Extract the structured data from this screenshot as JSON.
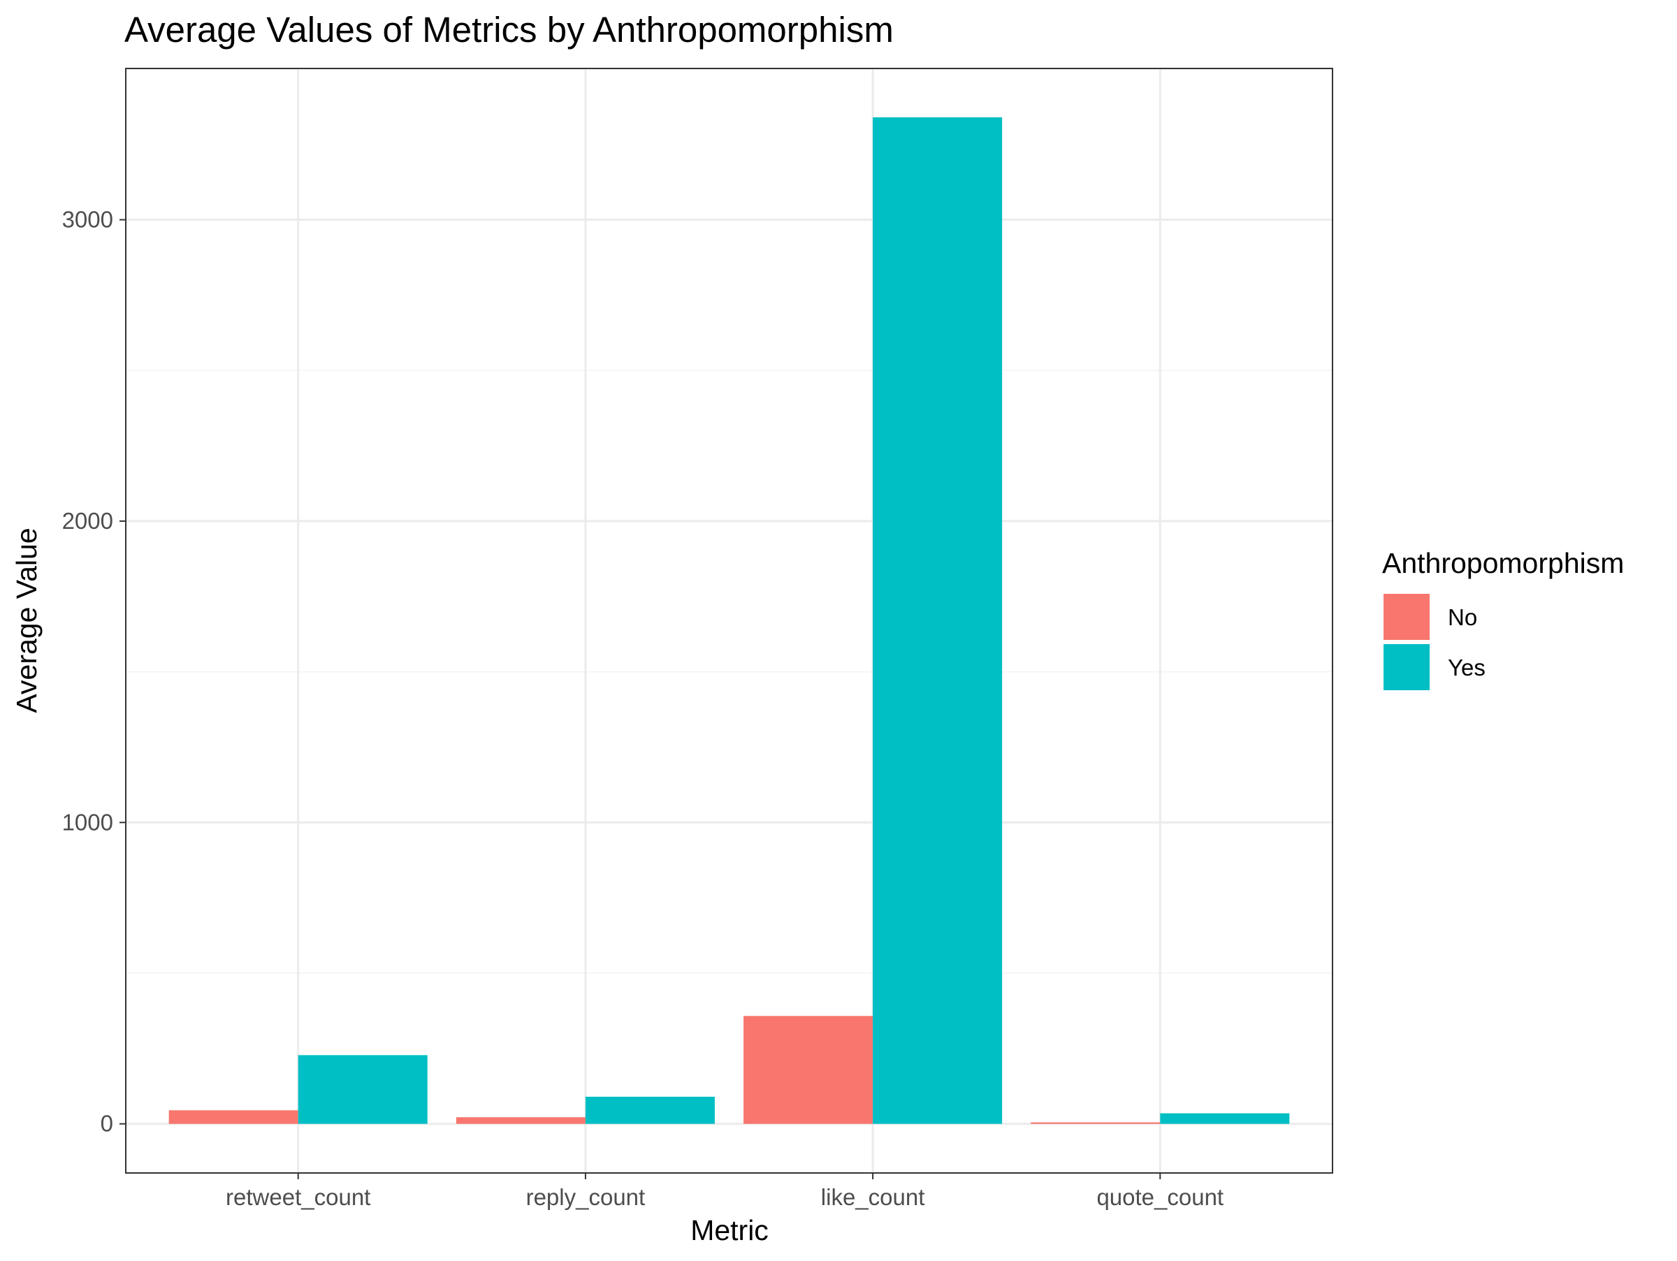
{
  "chart_data": {
    "type": "bar",
    "title": "Average Values of Metrics by Anthropomorphism",
    "xlabel": "Metric",
    "ylabel": "Average Value",
    "categories": [
      "retweet_count",
      "reply_count",
      "like_count",
      "quote_count"
    ],
    "series": [
      {
        "name": "No",
        "color": "#F8766D",
        "values": [
          45,
          22,
          358,
          5
        ]
      },
      {
        "name": "Yes",
        "color": "#00BFC4",
        "values": [
          228,
          90,
          3340,
          35
        ]
      }
    ],
    "ylim": [
      -163,
      3502
    ],
    "yticks": [
      0,
      1000,
      2000,
      3000
    ],
    "ytick_labels": [
      "0",
      "1000",
      "2000",
      "3000"
    ],
    "grid": true,
    "legend": {
      "title": "Anthropomorphism",
      "position": "right"
    }
  }
}
